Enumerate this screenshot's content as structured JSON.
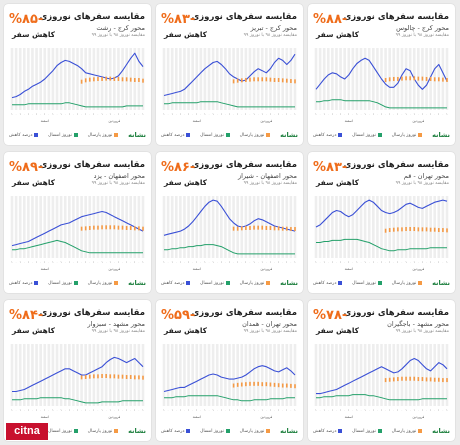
{
  "common": {
    "title": "مقایسه سفرهای نوروزی",
    "subtitle_suffix": "مقایسه نوروز ۹۸ با نوروز ۹۹",
    "decrease_label": "کاهش سفر",
    "logo_text": "نشانه",
    "legend": [
      "درصد کاهش",
      "نوروز امسال",
      "نوروز پارسال"
    ],
    "month_labels": [
      "اسفند",
      "فروردین"
    ],
    "watermark": "citna"
  },
  "colors": {
    "last_year": "#3a50d6",
    "this_year": "#24a06a",
    "decrease": "#f59a45",
    "bars": "#eeeeee",
    "accent": "#ef6c1a"
  },
  "chart_data": [
    {
      "type": "line",
      "route": "محور کرج - رشت",
      "percent": "%۸۵-",
      "series": [
        {
          "name": "نوروز پارسال",
          "values": [
            12,
            13,
            15,
            18,
            20,
            23,
            25,
            27,
            30,
            34,
            38,
            43,
            46,
            48,
            47,
            45,
            43,
            40,
            36,
            35,
            34,
            33,
            32,
            31,
            30,
            31,
            33,
            38,
            44,
            50,
            55,
            47,
            42
          ]
        },
        {
          "name": "نوروز امسال",
          "values": [
            5,
            5,
            5,
            5,
            6,
            6,
            6,
            6,
            6,
            6,
            6,
            6,
            6,
            7,
            7,
            6,
            5,
            4,
            3,
            3,
            3,
            3,
            3,
            3,
            3,
            3,
            3,
            3,
            4,
            4,
            4,
            4,
            4
          ]
        },
        {
          "name": "درصد کاهش",
          "values": [
            0,
            0,
            0,
            0,
            0,
            0,
            0,
            0,
            0,
            0,
            0,
            0,
            0,
            0,
            0,
            0,
            0,
            83,
            87,
            89,
            90,
            91,
            91,
            92,
            92,
            91,
            91,
            90,
            90,
            89,
            88,
            88,
            86
          ]
        }
      ]
    },
    {
      "type": "line",
      "route": "محور کرج - تبریز",
      "percent": "%۸۳-",
      "series": [
        {
          "name": "نوروز پارسال",
          "values": [
            14,
            15,
            16,
            17,
            18,
            20,
            24,
            28,
            32,
            36,
            40,
            43,
            46,
            47,
            44,
            40,
            35,
            32,
            30,
            28,
            29,
            33,
            37,
            40,
            38,
            36,
            40,
            46,
            50,
            48,
            44,
            48,
            54
          ]
        },
        {
          "name": "نوروز امسال",
          "values": [
            6,
            6,
            7,
            7,
            7,
            7,
            7,
            7,
            7,
            8,
            8,
            8,
            8,
            8,
            7,
            6,
            5,
            4,
            3,
            3,
            3,
            3,
            3,
            3,
            3,
            3,
            3,
            3,
            3,
            3,
            3,
            3,
            3
          ]
        },
        {
          "name": "درصد کاهش",
          "values": [
            0,
            0,
            0,
            0,
            0,
            0,
            0,
            0,
            0,
            0,
            0,
            0,
            0,
            0,
            0,
            0,
            0,
            84,
            86,
            87,
            88,
            89,
            90,
            90,
            90,
            90,
            89,
            88,
            88,
            87,
            86,
            85,
            84
          ]
        }
      ]
    },
    {
      "type": "line",
      "route": "محور کرج - چالوس",
      "percent": "%۸۸-",
      "series": [
        {
          "name": "نوروز پارسال",
          "values": [
            20,
            25,
            30,
            34,
            36,
            35,
            32,
            30,
            34,
            40,
            45,
            48,
            50,
            48,
            42,
            36,
            30,
            25,
            22,
            22,
            26,
            34,
            40,
            38,
            30,
            24,
            20,
            24,
            32,
            40,
            44,
            36,
            28
          ]
        },
        {
          "name": "نوروز امسال",
          "values": [
            8,
            8,
            9,
            9,
            10,
            10,
            10,
            9,
            9,
            9,
            9,
            9,
            9,
            9,
            8,
            7,
            5,
            3,
            2,
            2,
            2,
            2,
            2,
            2,
            2,
            2,
            2,
            2,
            2,
            2,
            2,
            2,
            2
          ]
        },
        {
          "name": "درصد کاهش",
          "values": [
            0,
            0,
            0,
            0,
            0,
            0,
            0,
            0,
            0,
            0,
            0,
            0,
            0,
            0,
            0,
            0,
            0,
            88,
            90,
            91,
            91,
            92,
            93,
            93,
            93,
            92,
            92,
            91,
            91,
            90,
            90,
            89,
            88
          ]
        }
      ]
    },
    {
      "type": "line",
      "route": "محور اصفهان - یزد",
      "percent": "%۸۹-",
      "series": [
        {
          "name": "نوروز پارسال",
          "values": [
            12,
            13,
            14,
            15,
            16,
            18,
            20,
            22,
            24,
            26,
            28,
            30,
            32,
            33,
            34,
            36,
            38,
            40,
            41,
            42,
            43,
            44,
            45,
            44,
            42,
            40,
            38,
            36,
            34,
            32,
            30,
            28,
            26
          ]
        },
        {
          "name": "نوروز امسال",
          "values": [
            8,
            8,
            9,
            9,
            10,
            11,
            12,
            13,
            14,
            15,
            16,
            17,
            16,
            15,
            13,
            11,
            9,
            7,
            6,
            5,
            5,
            5,
            5,
            5,
            5,
            5,
            5,
            5,
            5,
            5,
            5,
            5,
            5
          ]
        },
        {
          "name": "درصد کاهش",
          "values": [
            0,
            0,
            0,
            0,
            0,
            0,
            0,
            0,
            0,
            0,
            0,
            0,
            0,
            0,
            0,
            0,
            0,
            86,
            87,
            88,
            89,
            89,
            90,
            90,
            90,
            90,
            89,
            89,
            88,
            88,
            87,
            87,
            86
          ]
        }
      ]
    },
    {
      "type": "line",
      "route": "محور اصفهان - شیراز",
      "percent": "%۸۶-",
      "series": [
        {
          "name": "نوروز پارسال",
          "values": [
            22,
            23,
            24,
            25,
            26,
            28,
            31,
            35,
            40,
            45,
            50,
            54,
            56,
            55,
            50,
            44,
            38,
            34,
            31,
            30,
            31,
            33,
            36,
            38,
            37,
            35,
            33,
            31,
            30,
            29,
            28,
            27,
            26
          ]
        },
        {
          "name": "نوروز امسال",
          "values": [
            8,
            8,
            9,
            9,
            10,
            10,
            11,
            11,
            12,
            12,
            13,
            13,
            13,
            12,
            11,
            9,
            7,
            5,
            4,
            4,
            4,
            4,
            4,
            4,
            4,
            4,
            4,
            4,
            4,
            4,
            4,
            4,
            4
          ]
        },
        {
          "name": "درصد کاهش",
          "values": [
            0,
            0,
            0,
            0,
            0,
            0,
            0,
            0,
            0,
            0,
            0,
            0,
            0,
            0,
            0,
            0,
            0,
            86,
            86,
            87,
            88,
            88,
            89,
            89,
            89,
            88,
            88,
            87,
            87,
            86,
            86,
            85,
            85
          ]
        }
      ]
    },
    {
      "type": "line",
      "route": "محور تهران - قم",
      "percent": "%۸۳-",
      "series": [
        {
          "name": "نوروز پارسال",
          "values": [
            30,
            32,
            36,
            40,
            44,
            46,
            45,
            42,
            40,
            42,
            46,
            50,
            54,
            56,
            54,
            50,
            46,
            44,
            43,
            44,
            46,
            49,
            52,
            53,
            51,
            49,
            48,
            50,
            52,
            54,
            55,
            56,
            55
          ]
        },
        {
          "name": "نوروز امسال",
          "values": [
            15,
            15,
            16,
            16,
            17,
            17,
            17,
            18,
            18,
            18,
            18,
            17,
            16,
            15,
            13,
            11,
            9,
            8,
            7,
            7,
            8,
            8,
            8,
            9,
            9,
            9,
            9,
            9,
            10,
            10,
            10,
            10,
            10
          ]
        },
        {
          "name": "درصد کاهش",
          "values": [
            0,
            0,
            0,
            0,
            0,
            0,
            0,
            0,
            0,
            0,
            0,
            0,
            0,
            0,
            0,
            0,
            0,
            80,
            82,
            83,
            84,
            84,
            85,
            85,
            85,
            84,
            84,
            84,
            83,
            83,
            82,
            82,
            81
          ]
        }
      ]
    },
    {
      "type": "line",
      "route": "محور مشهد - سبزوار",
      "percent": "%۸۴-",
      "series": [
        {
          "name": "نوروز پارسال",
          "values": [
            14,
            14,
            15,
            16,
            18,
            20,
            22,
            24,
            26,
            28,
            30,
            32,
            34,
            36,
            36,
            34,
            32,
            30,
            30,
            32,
            34,
            36,
            38,
            42,
            45,
            47,
            46,
            44,
            42,
            44,
            46,
            42,
            38
          ]
        },
        {
          "name": "نوروز امسال",
          "values": [
            6,
            6,
            6,
            7,
            7,
            7,
            7,
            8,
            8,
            8,
            8,
            8,
            8,
            7,
            7,
            6,
            5,
            4,
            3,
            3,
            3,
            3,
            4,
            4,
            4,
            4,
            4,
            5,
            5,
            5,
            5,
            5,
            5
          ]
        },
        {
          "name": "درصد کاهش",
          "values": [
            0,
            0,
            0,
            0,
            0,
            0,
            0,
            0,
            0,
            0,
            0,
            0,
            0,
            0,
            0,
            0,
            0,
            84,
            85,
            86,
            87,
            87,
            88,
            88,
            87,
            87,
            86,
            86,
            85,
            85,
            84,
            84,
            83
          ]
        }
      ]
    },
    {
      "type": "line",
      "route": "محور تهران - همدان",
      "percent": "%۵۹-",
      "series": [
        {
          "name": "نوروز پارسال",
          "values": [
            14,
            15,
            16,
            17,
            18,
            18,
            20,
            22,
            24,
            26,
            28,
            30,
            31,
            30,
            28,
            27,
            26,
            26,
            27,
            28,
            30,
            33,
            36,
            38,
            39,
            38,
            36,
            34,
            33,
            35,
            37,
            34,
            30
          ]
        },
        {
          "name": "نوروز امسال",
          "values": [
            8,
            8,
            8,
            9,
            9,
            9,
            10,
            10,
            10,
            10,
            10,
            10,
            10,
            10,
            9,
            8,
            7,
            6,
            6,
            5,
            5,
            5,
            6,
            6,
            6,
            6,
            7,
            7,
            7,
            7,
            8,
            8,
            8
          ]
        },
        {
          "name": "درصد کاهش",
          "values": [
            0,
            0,
            0,
            0,
            0,
            0,
            0,
            0,
            0,
            0,
            0,
            0,
            0,
            0,
            0,
            0,
            0,
            60,
            62,
            63,
            64,
            65,
            65,
            65,
            64,
            64,
            63,
            62,
            61,
            60,
            60,
            59,
            58
          ]
        }
      ]
    },
    {
      "type": "line",
      "route": "محور مشهد - باجگیران",
      "percent": "%۷۸-",
      "series": [
        {
          "name": "نوروز پارسال",
          "values": [
            12,
            12,
            13,
            14,
            15,
            16,
            18,
            20,
            22,
            24,
            26,
            28,
            30,
            32,
            34,
            36,
            38,
            36,
            34,
            32,
            33,
            36,
            40,
            44,
            46,
            44,
            40,
            36,
            34,
            38,
            42,
            40,
            36
          ]
        },
        {
          "name": "نوروز امسال",
          "values": [
            8,
            8,
            9,
            9,
            9,
            10,
            10,
            10,
            10,
            11,
            11,
            11,
            11,
            10,
            10,
            9,
            8,
            7,
            6,
            6,
            6,
            6,
            6,
            6,
            6,
            6,
            7,
            7,
            7,
            7,
            7,
            7,
            7
          ]
        },
        {
          "name": "درصد کاهش",
          "values": [
            0,
            0,
            0,
            0,
            0,
            0,
            0,
            0,
            0,
            0,
            0,
            0,
            0,
            0,
            0,
            0,
            0,
            76,
            77,
            78,
            79,
            80,
            80,
            80,
            80,
            79,
            79,
            78,
            78,
            77,
            77,
            76,
            76
          ]
        }
      ]
    }
  ]
}
